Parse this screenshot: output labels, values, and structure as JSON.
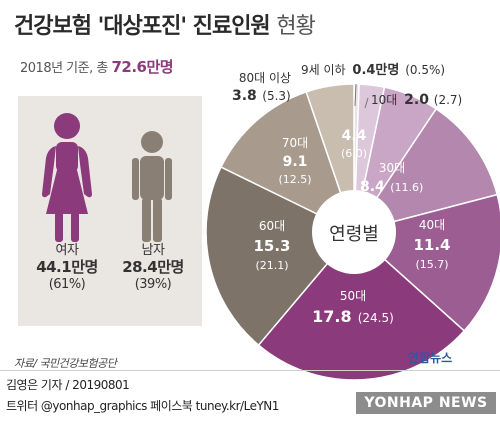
{
  "title": {
    "main": "건강보험 '대상포진' 진료인원",
    "light": "현황"
  },
  "subtitle": {
    "prefix": "2018년 기준, 총",
    "total": "72.6만명"
  },
  "gender": {
    "female": {
      "label": "여자",
      "value": "44.1만명",
      "pct": "(61%)"
    },
    "male": {
      "label": "남자",
      "value": "28.4만명",
      "pct": "(39%)"
    }
  },
  "chart_data": {
    "type": "pie",
    "title": "건강보험 '대상포진' 진료인원 현황",
    "center_label": "연령별",
    "unit": "만명",
    "categories": [
      "9세 이하",
      "10대",
      "20대",
      "30대",
      "40대",
      "50대",
      "60대",
      "70대",
      "80대 이상"
    ],
    "values": [
      0.4,
      2.0,
      4.4,
      8.4,
      11.4,
      17.8,
      15.3,
      9.1,
      3.8
    ],
    "percents": [
      0.5,
      2.7,
      6.0,
      11.6,
      15.7,
      24.5,
      21.1,
      12.5,
      5.3
    ],
    "colors": [
      "#ece1ea",
      "#ddc7da",
      "#c9a6c5",
      "#b487ae",
      "#9c5d92",
      "#8b3a7b",
      "#7d7369",
      "#a89b8e",
      "#c9bdb0"
    ]
  },
  "pie_labels": {
    "s0": {
      "name": "9세 이하",
      "value": "0.4만명",
      "pct": "(0.5%)"
    },
    "s1": {
      "name": "10대",
      "value": "2.0",
      "pct": "(2.7)"
    },
    "s2": {
      "value": "4.4",
      "pct": "(6.0)"
    },
    "s3": {
      "name": "30대",
      "value": "8.4",
      "pct": "(11.6)"
    },
    "s4": {
      "name": "40대",
      "value": "11.4",
      "pct": "(15.7)"
    },
    "s5": {
      "name": "50대",
      "value": "17.8",
      "pct": "(24.5)"
    },
    "s6": {
      "name": "60대",
      "value": "15.3",
      "pct": "(21.1)"
    },
    "s7": {
      "name": "70대",
      "value": "9.1",
      "pct": "(12.5)"
    },
    "s8": {
      "name": "80대 이상",
      "value": "3.8",
      "pct": "(5.3)"
    }
  },
  "source": "자료/ 국민건강보험공단",
  "credit": {
    "line1": "김영은 기자 / 20190801",
    "line2": "트위터 @yonhap_graphics  페이스북 tuney.kr/LeYN1"
  },
  "brand": "연합뉴스",
  "agency": "YONHAP NEWS"
}
